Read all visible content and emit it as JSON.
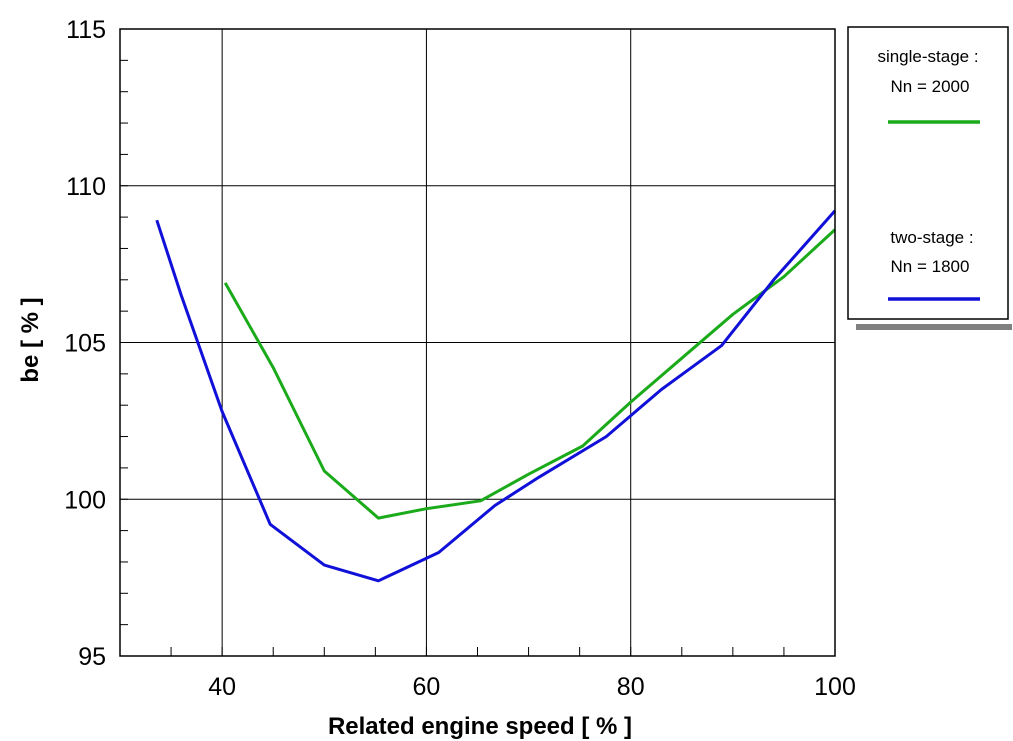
{
  "chart_data": {
    "type": "line",
    "title": "",
    "xlabel": "Related engine speed [ % ]",
    "ylabel": "be   [ % ]",
    "xlim": [
      30,
      100
    ],
    "ylim": [
      95,
      115
    ],
    "x_ticks": [
      40,
      60,
      80,
      100
    ],
    "y_ticks": [
      95,
      100,
      105,
      110,
      115
    ],
    "x_minor_step": 5,
    "y_minor_step": 1,
    "grid": true,
    "legend_position": "right",
    "series": [
      {
        "name": "single-stage :",
        "name2": "Nn =  2000",
        "color": "#1aaa1a",
        "x": [
          40.3,
          45,
          50,
          55.3,
          60,
          65.3,
          70,
          75.3,
          80,
          85,
          90,
          95,
          100
        ],
        "y": [
          106.9,
          104.2,
          100.9,
          99.4,
          99.7,
          99.95,
          100.8,
          101.7,
          103.1,
          104.5,
          105.9,
          107.1,
          108.6
        ]
      },
      {
        "name": "two-stage :",
        "name2": "Nn =  1800",
        "color": "#1010d8",
        "x": [
          33.6,
          36,
          40,
          44.7,
          50,
          55.3,
          61.2,
          66.7,
          71,
          77.6,
          83,
          88.9,
          94,
          100
        ],
        "y": [
          108.9,
          106.5,
          102.8,
          99.2,
          97.9,
          97.4,
          98.3,
          99.8,
          100.7,
          102.0,
          103.5,
          104.9,
          107.0,
          109.2
        ]
      }
    ]
  }
}
